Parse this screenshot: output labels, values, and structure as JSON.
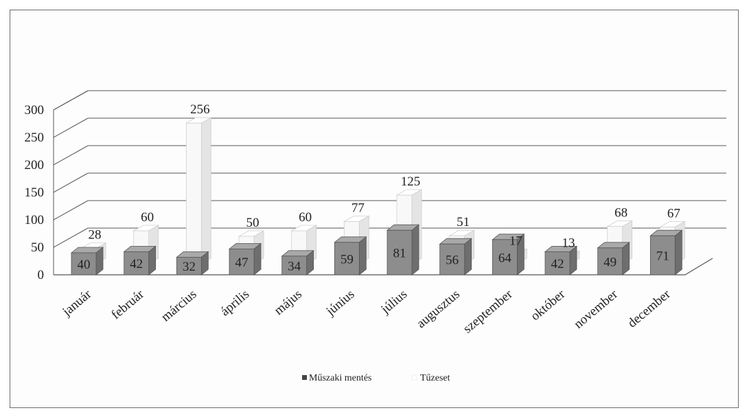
{
  "chart_data": {
    "type": "bar",
    "title": "",
    "xlabel": "",
    "ylabel": "",
    "ylim": [
      0,
      300
    ],
    "yticks": [
      "0",
      "50",
      "100",
      "150",
      "200",
      "250",
      "300"
    ],
    "grid": true,
    "legend_position": "bottom",
    "categories": [
      "január",
      "február",
      "március",
      "április",
      "május",
      "június",
      "július",
      "augusztus",
      "szeptember",
      "október",
      "november",
      "december"
    ],
    "series": [
      {
        "name": "Műszaki mentés",
        "values": [
          40,
          42,
          32,
          47,
          34,
          59,
          81,
          56,
          64,
          42,
          49,
          71
        ],
        "color": "#8c8c8c"
      },
      {
        "name": "Tűzeset",
        "values": [
          28,
          60,
          256,
          50,
          60,
          77,
          125,
          51,
          17,
          13,
          68,
          67
        ],
        "color": "#f6f6f6"
      }
    ]
  }
}
